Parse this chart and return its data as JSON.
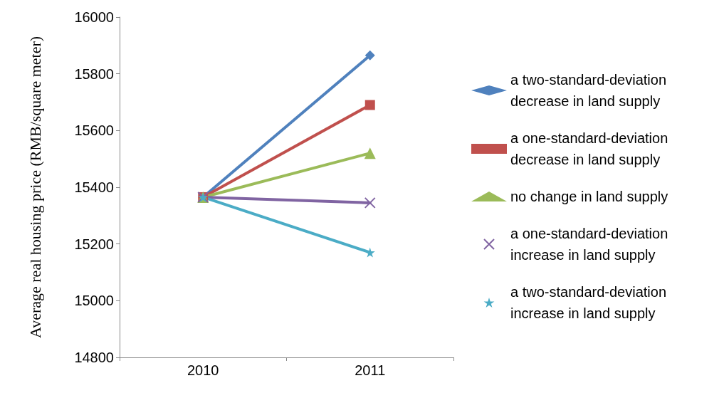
{
  "chart_data": {
    "type": "line",
    "ylabel": "Average real housing price (RMB/square meter)",
    "categories": [
      "2010",
      "2011"
    ],
    "ylim": [
      14800,
      16000
    ],
    "yticks": [
      14800,
      15000,
      15200,
      15400,
      15600,
      15800,
      16000
    ],
    "grid": false,
    "legend": "right",
    "line_style": "solid",
    "series": [
      {
        "name": "a two-standard-deviation decrease in land supply",
        "color": "#4f81bd",
        "marker": "diamond",
        "values": [
          15365,
          15865
        ]
      },
      {
        "name": "a one-standard-deviation decrease in land supply",
        "color": "#c0504d",
        "marker": "square",
        "values": [
          15365,
          15690
        ]
      },
      {
        "name": "no change in land supply",
        "color": "#9bbb59",
        "marker": "triangle",
        "values": [
          15365,
          15520
        ]
      },
      {
        "name": "a one-standard-deviation increase in land supply",
        "color": "#8064a2",
        "marker": "cross",
        "values": [
          15365,
          15345
        ]
      },
      {
        "name": "a two-standard-deviation increase in land supply",
        "color": "#4bacc6",
        "marker": "star",
        "values": [
          15365,
          15170
        ]
      }
    ]
  }
}
